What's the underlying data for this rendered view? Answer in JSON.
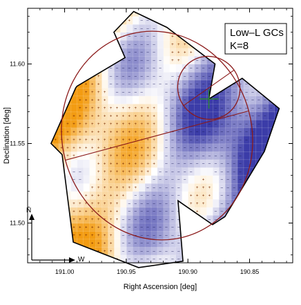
{
  "chart_data": {
    "type": "heatmap",
    "title": "",
    "xlabel": "Right Ascension [deg]",
    "ylabel": "Declination [deg]",
    "xlim": [
      191.03,
      190.815
    ],
    "ylim": [
      11.475,
      11.635
    ],
    "x_axis_reversed": true,
    "x_ticks": [
      {
        "value": 191.0,
        "label": "191.00"
      },
      {
        "value": 190.95,
        "label": "190.95"
      },
      {
        "value": 190.9,
        "label": "190.90"
      },
      {
        "value": 190.85,
        "label": "190.85"
      }
    ],
    "y_ticks": [
      {
        "value": 11.5,
        "label": "11.50"
      },
      {
        "value": 11.55,
        "label": "11.55"
      },
      {
        "value": 11.6,
        "label": "11.60"
      }
    ],
    "legend": {
      "placement": "top-right",
      "lines": [
        "Low–L GCs",
        "K=8"
      ]
    },
    "compass": {
      "north": "N",
      "west": "W"
    },
    "footprint_polygon": [
      [
        190.944,
        11.633
      ],
      [
        190.917,
        11.623
      ],
      [
        190.878,
        11.6
      ],
      [
        190.883,
        11.578
      ],
      [
        190.856,
        11.591
      ],
      [
        190.826,
        11.572
      ],
      [
        190.838,
        11.545
      ],
      [
        190.87,
        11.504
      ],
      [
        190.88,
        11.499
      ],
      [
        190.908,
        11.514
      ],
      [
        190.904,
        11.476
      ],
      [
        190.94,
        11.472
      ],
      [
        190.993,
        11.488
      ],
      [
        191.002,
        11.543
      ],
      [
        191.011,
        11.55
      ],
      [
        190.991,
        11.585
      ],
      [
        190.99,
        11.586
      ],
      [
        190.951,
        11.604
      ],
      [
        190.96,
        11.62
      ]
    ],
    "grid": {
      "ra_start": 190.825,
      "ra_end": 191.015,
      "ra_step": 0.005,
      "dec_start": 11.47,
      "dec_end": 11.635,
      "dec_step": 0.005
    },
    "centre_marker": {
      "ra": 190.883,
      "dec": 11.578
    },
    "ellipses": [
      {
        "ra": 190.925,
        "dec": 11.555,
        "a_deg": 0.077,
        "b_deg": 0.066,
        "pa_deg": 15
      },
      {
        "ra": 190.883,
        "dec": 11.585,
        "a_deg": 0.025,
        "b_deg": 0.02,
        "pa_deg": 35
      }
    ],
    "colors": {
      "overdensity": "#f39c12",
      "underdensity": "#3b3ca8",
      "neutral": "#ffffff",
      "ellipse": "#8b1a1a",
      "marker": "#2e8b2e",
      "outline": "#000000"
    }
  }
}
